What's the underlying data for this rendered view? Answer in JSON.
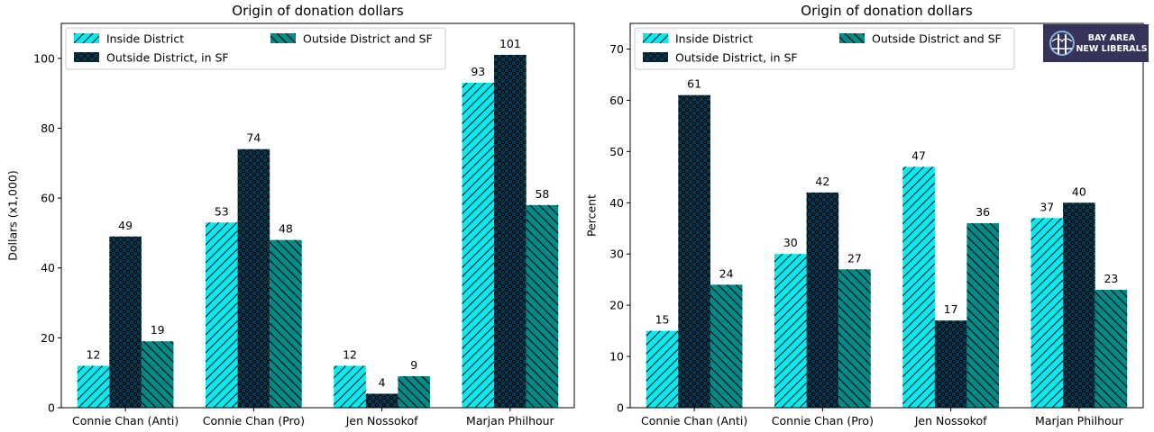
{
  "colors": {
    "inside": "#00ecf2",
    "outside_sf": "#073a4e",
    "outside_all": "#008a87",
    "logo_bg": "#35335a"
  },
  "logo": {
    "line1": "BAY AREA",
    "line2": "NEW LIBERALS"
  },
  "chart_data": [
    {
      "type": "bar",
      "title": "Origin of donation dollars",
      "xlabel": "",
      "ylabel": "Dollars (x1,000)",
      "ylim": [
        0,
        110
      ],
      "yticks": [
        0,
        20,
        40,
        60,
        80,
        100
      ],
      "categories": [
        "Connie Chan (Anti)",
        "Connie Chan (Pro)",
        "Jen Nossokof",
        "Marjan Philhour"
      ],
      "legend_position": "top-left",
      "series": [
        {
          "name": "Inside District",
          "values": [
            12,
            53,
            12,
            93
          ]
        },
        {
          "name": "Outside District, in SF",
          "values": [
            49,
            74,
            4,
            101
          ]
        },
        {
          "name": "Outside District and SF",
          "values": [
            19,
            48,
            9,
            58
          ]
        }
      ],
      "data_labels": [
        [
          "12",
          "53",
          "12",
          "93"
        ],
        [
          "49",
          "74",
          "4",
          "101"
        ],
        [
          "19",
          "48",
          "9",
          "58"
        ]
      ]
    },
    {
      "type": "bar",
      "title": "Origin of donation dollars",
      "xlabel": "",
      "ylabel": "Percent",
      "ylim": [
        0,
        75
      ],
      "yticks": [
        0,
        10,
        20,
        30,
        40,
        50,
        60,
        70
      ],
      "categories": [
        "Connie Chan (Anti)",
        "Connie Chan (Pro)",
        "Jen Nossokof",
        "Marjan Philhour"
      ],
      "legend_position": "top-left",
      "series": [
        {
          "name": "Inside District",
          "values": [
            15,
            30,
            47,
            37
          ]
        },
        {
          "name": "Outside District, in SF",
          "values": [
            61,
            42,
            17,
            40
          ]
        },
        {
          "name": "Outside District and SF",
          "values": [
            24,
            27,
            36,
            23
          ]
        }
      ],
      "data_labels": [
        [
          "15",
          "30",
          "47",
          "37"
        ],
        [
          "61",
          "42",
          "17",
          "40"
        ],
        [
          "24",
          "27",
          "36",
          "23"
        ]
      ]
    }
  ]
}
